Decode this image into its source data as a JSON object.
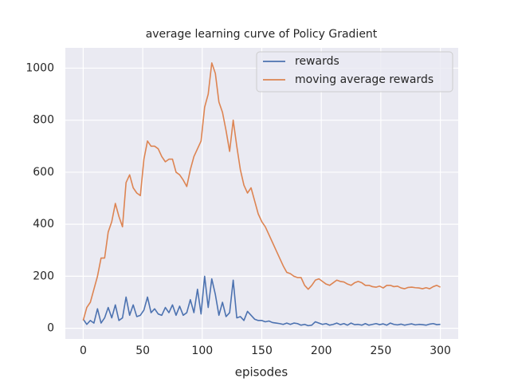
{
  "chart_data": {
    "type": "line",
    "title": "average learning curve of Policy Gradient",
    "xlabel": "episodes",
    "x": [
      0,
      3,
      6,
      9,
      12,
      15,
      18,
      21,
      24,
      27,
      30,
      33,
      36,
      39,
      42,
      45,
      48,
      51,
      54,
      57,
      60,
      63,
      66,
      69,
      72,
      75,
      78,
      81,
      84,
      87,
      90,
      93,
      96,
      99,
      102,
      105,
      108,
      111,
      114,
      117,
      120,
      123,
      126,
      129,
      132,
      135,
      138,
      141,
      144,
      147,
      150,
      153,
      156,
      159,
      162,
      165,
      168,
      171,
      174,
      177,
      180,
      183,
      186,
      189,
      192,
      195,
      198,
      201,
      204,
      207,
      210,
      213,
      216,
      219,
      222,
      225,
      228,
      231,
      234,
      237,
      240,
      243,
      246,
      249,
      252,
      255,
      258,
      261,
      264,
      267,
      270,
      273,
      276,
      279,
      282,
      285,
      288,
      291,
      294,
      297,
      300
    ],
    "series": [
      {
        "name": "rewards",
        "color": "#4c72b0",
        "values": [
          35,
          15,
          30,
          20,
          75,
          20,
          40,
          80,
          40,
          90,
          30,
          40,
          120,
          50,
          90,
          45,
          50,
          70,
          120,
          60,
          75,
          55,
          50,
          80,
          60,
          90,
          50,
          85,
          50,
          60,
          110,
          60,
          150,
          55,
          200,
          80,
          190,
          130,
          50,
          100,
          45,
          60,
          185,
          40,
          45,
          30,
          65,
          50,
          35,
          30,
          30,
          25,
          28,
          22,
          20,
          18,
          15,
          20,
          15,
          20,
          18,
          12,
          15,
          10,
          12,
          25,
          20,
          15,
          18,
          12,
          15,
          20,
          14,
          18,
          12,
          20,
          14,
          15,
          12,
          18,
          12,
          15,
          18,
          14,
          17,
          12,
          20,
          15,
          13,
          16,
          12,
          15,
          17,
          13,
          15,
          14,
          12,
          16,
          18,
          14,
          15
        ]
      },
      {
        "name": "moving average rewards",
        "color": "#dd8452",
        "values": [
          30,
          80,
          100,
          150,
          200,
          270,
          270,
          370,
          410,
          480,
          430,
          390,
          560,
          590,
          540,
          520,
          510,
          650,
          720,
          700,
          700,
          690,
          660,
          640,
          650,
          650,
          600,
          590,
          570,
          545,
          610,
          660,
          690,
          720,
          850,
          900,
          1020,
          980,
          870,
          830,
          760,
          680,
          800,
          700,
          610,
          550,
          520,
          540,
          490,
          440,
          410,
          390,
          360,
          330,
          300,
          270,
          240,
          215,
          210,
          200,
          195,
          195,
          165,
          150,
          165,
          185,
          190,
          180,
          170,
          165,
          175,
          185,
          180,
          178,
          170,
          165,
          175,
          180,
          175,
          165,
          165,
          160,
          158,
          162,
          155,
          165,
          165,
          160,
          162,
          155,
          152,
          157,
          158,
          156,
          155,
          152,
          156,
          152,
          160,
          165,
          158
        ]
      }
    ],
    "xlim": [
      -15,
      315
    ],
    "ylim": [
      -41,
      1078
    ],
    "xticks": [
      0,
      50,
      100,
      150,
      200,
      250,
      300
    ],
    "yticks": [
      0,
      200,
      400,
      600,
      800,
      1000
    ],
    "grid": true,
    "legend": "upper right"
  }
}
